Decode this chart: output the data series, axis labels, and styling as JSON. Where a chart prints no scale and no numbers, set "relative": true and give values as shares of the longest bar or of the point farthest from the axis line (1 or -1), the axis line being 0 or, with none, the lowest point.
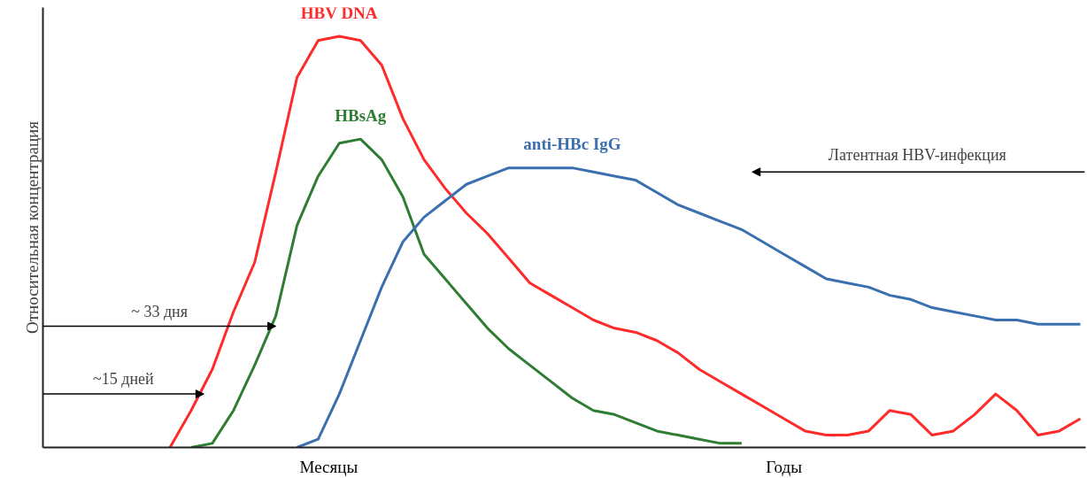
{
  "chart_data": {
    "type": "line",
    "relative": true,
    "ylabel": "Относительная концентрация",
    "categories": [
      null,
      null,
      null,
      null,
      null,
      null,
      null,
      null,
      null,
      null,
      null,
      null,
      null,
      null,
      null,
      null,
      null,
      null,
      null,
      null,
      null,
      null,
      null,
      null,
      null,
      null,
      null,
      null,
      null,
      null,
      null,
      null,
      null,
      null,
      null,
      null,
      null,
      null,
      null,
      null,
      null,
      null,
      null,
      null,
      null,
      null,
      null,
      null,
      null,
      null
    ],
    "series": [
      {
        "name": "HBV DNA",
        "color": "#ff2a2a",
        "values": [
          null,
          null,
          null,
          null,
          null,
          null,
          0,
          0.09,
          0.19,
          0.33,
          0.45,
          0.67,
          0.9,
          0.99,
          1.0,
          0.99,
          0.93,
          0.8,
          0.7,
          0.63,
          0.57,
          0.52,
          0.46,
          0.4,
          0.37,
          0.34,
          0.31,
          0.29,
          0.28,
          0.26,
          0.23,
          0.19,
          0.16,
          0.13,
          0.1,
          0.07,
          0.04,
          0.03,
          0.03,
          0.04,
          0.09,
          0.08,
          0.03,
          0.04,
          0.08,
          0.13,
          0.09,
          0.03,
          0.04,
          0.07
        ]
      },
      {
        "name": "HBsAg",
        "color": "#2e7d32",
        "values": [
          null,
          null,
          null,
          null,
          null,
          null,
          null,
          0,
          0.01,
          0.09,
          0.2,
          0.32,
          0.54,
          0.66,
          0.74,
          0.75,
          0.7,
          0.61,
          0.47,
          0.41,
          0.35,
          0.29,
          0.24,
          0.2,
          0.16,
          0.12,
          0.09,
          0.08,
          0.06,
          0.04,
          0.03,
          0.02,
          0.01,
          0.01,
          null,
          null,
          null,
          null,
          null,
          null,
          null,
          null,
          null,
          null,
          null,
          null,
          null,
          null,
          null,
          null
        ]
      },
      {
        "name": "anti-HBc IgG",
        "color": "#3a6fb0",
        "values": [
          null,
          null,
          null,
          null,
          null,
          null,
          null,
          null,
          null,
          null,
          null,
          null,
          0,
          0.02,
          0.13,
          0.26,
          0.39,
          0.5,
          0.56,
          0.6,
          0.64,
          0.66,
          0.68,
          0.68,
          0.68,
          0.68,
          0.67,
          0.66,
          0.65,
          0.62,
          0.59,
          0.57,
          0.55,
          0.53,
          0.5,
          0.47,
          0.44,
          0.41,
          0.4,
          0.39,
          0.37,
          0.36,
          0.34,
          0.33,
          0.32,
          0.31,
          0.31,
          0.3,
          0.3,
          0.3
        ]
      }
    ],
    "annotations": [
      "~ 33 дня",
      "~15 дней",
      "Латентная HBV-инфекция",
      "Месяцы",
      "Годы"
    ]
  }
}
